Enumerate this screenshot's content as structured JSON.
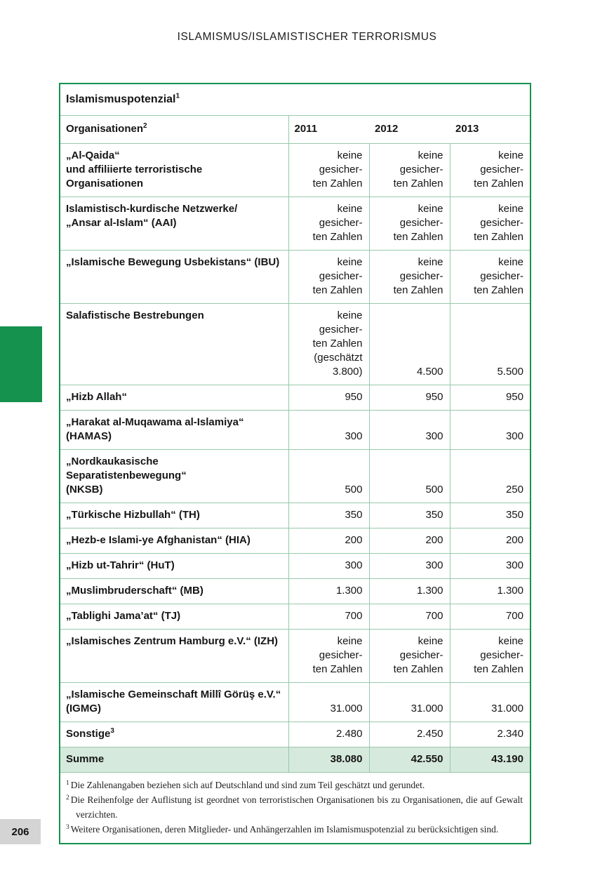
{
  "page": {
    "running_head": "ISLAMISMUS/ISLAMISTISCHER TERRORISMUS",
    "page_number": "206"
  },
  "colors": {
    "brand_green": "#14924e",
    "grid_green": "#97c9ab",
    "total_row_bg": "#d6e9dd",
    "page_number_bg": "#d4d4d4"
  },
  "table": {
    "title": {
      "text": "Islamismuspotenzial",
      "sup": "1"
    },
    "header": {
      "org": {
        "text": "Organisationen",
        "sup": "2"
      },
      "years": [
        "2011",
        "2012",
        "2013"
      ]
    },
    "rows": [
      {
        "name": "„Al-Qaida“\nund affiliierte terroristische Organisationen",
        "values": [
          "keine gesicher-\nten Zahlen",
          "keine gesicher-\nten Zahlen",
          "keine gesicher-\nten Zahlen"
        ]
      },
      {
        "name": "Islamistisch-kurdische Netzwerke/\n„Ansar al-Islam“ (AAI)",
        "values": [
          "keine gesicher-\nten Zahlen",
          "keine gesicher-\nten Zahlen",
          "keine gesicher-\nten Zahlen"
        ]
      },
      {
        "name": "„Islamische Bewegung Usbekistans“ (IBU)",
        "values": [
          "keine gesicher-\nten Zahlen",
          "keine gesicher-\nten Zahlen",
          "keine gesicher-\nten Zahlen"
        ]
      },
      {
        "name": "Salafistische Bestrebungen",
        "values": [
          "keine gesicher-\nten Zahlen\n(geschätzt\n3.800)",
          "4.500",
          "5.500"
        ]
      },
      {
        "name": "„Hizb Allah“",
        "values": [
          "950",
          "950",
          "950"
        ]
      },
      {
        "name": "„Harakat al-Muqawama al-Islamiya“\n(HAMAS)",
        "values": [
          "300",
          "300",
          "300"
        ]
      },
      {
        "name": "„Nordkaukasische Separatistenbewegung“\n(NKSB)",
        "values": [
          "500",
          "500",
          "250"
        ]
      },
      {
        "name": "„Türkische Hizbullah“ (TH)",
        "values": [
          "350",
          "350",
          "350"
        ]
      },
      {
        "name": "„Hezb-e Islami-ye Afghanistan“ (HIA)",
        "values": [
          "200",
          "200",
          "200"
        ]
      },
      {
        "name": "„Hizb ut-Tahrir“ (HuT)",
        "values": [
          "300",
          "300",
          "300"
        ]
      },
      {
        "name": "„Muslimbruderschaft“ (MB)",
        "values": [
          "1.300",
          "1.300",
          "1.300"
        ]
      },
      {
        "name": "„Tablighi Jama’at“ (TJ)",
        "values": [
          "700",
          "700",
          "700"
        ]
      },
      {
        "name": "„Islamisches Zentrum Hamburg e.V.“ (IZH)",
        "values": [
          "keine gesicher-\nten Zahlen",
          "keine gesicher-\nten Zahlen",
          "keine gesicher-\nten Zahlen"
        ]
      },
      {
        "name": "„Islamische Gemeinschaft Millî Görüş e.V.“\n(IGMG)",
        "values": [
          "31.000",
          "31.000",
          "31.000"
        ]
      },
      {
        "name": "Sonstige",
        "name_sup": "3",
        "values": [
          "2.480",
          "2.450",
          "2.340"
        ]
      }
    ],
    "total_row": {
      "label": "Summe",
      "values": [
        "38.080",
        "42.550",
        "43.190"
      ]
    },
    "footnotes": [
      {
        "marker": "1",
        "text": "Die Zahlenangaben beziehen sich auf Deutschland und sind zum Teil geschätzt und gerundet."
      },
      {
        "marker": "2",
        "text": "Die Reihenfolge der Auflistung ist geordnet von terroristischen Organisationen bis zu Organisationen, die auf Gewalt verzichten."
      },
      {
        "marker": "3",
        "text": "Weitere Organisationen, deren Mitglieder- und Anhängerzahlen im Islamismuspotenzial zu berücksichtigen sind."
      }
    ]
  }
}
